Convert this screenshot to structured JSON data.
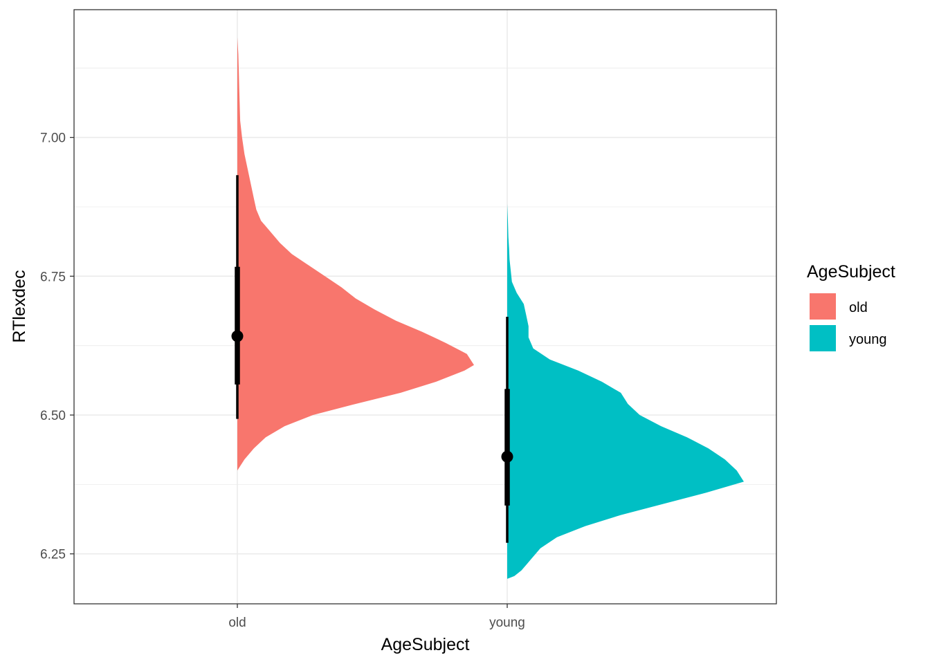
{
  "chart_data": {
    "type": "half-violin-pointinterval",
    "xlabel": "AgeSubject",
    "ylabel": "RTlexdec",
    "categories": [
      "old",
      "young"
    ],
    "ylim": [
      6.16,
      7.23
    ],
    "yticks": [
      "6.25",
      "6.50",
      "6.75",
      "7.00"
    ],
    "grid": true,
    "legend": {
      "title": "AgeSubject",
      "placement": "right",
      "entries": [
        "old",
        "young"
      ]
    },
    "colors": {
      "old": "#F8766D",
      "young": "#00BFC4"
    },
    "series": [
      {
        "name": "old",
        "density": [
          [
            6.4,
            0.0
          ],
          [
            6.42,
            0.03
          ],
          [
            6.44,
            0.07
          ],
          [
            6.46,
            0.12
          ],
          [
            6.48,
            0.2
          ],
          [
            6.5,
            0.32
          ],
          [
            6.52,
            0.5
          ],
          [
            6.54,
            0.69
          ],
          [
            6.56,
            0.84
          ],
          [
            6.58,
            0.96
          ],
          [
            6.59,
            1.0
          ],
          [
            6.61,
            0.97
          ],
          [
            6.63,
            0.88
          ],
          [
            6.65,
            0.78
          ],
          [
            6.67,
            0.67
          ],
          [
            6.69,
            0.58
          ],
          [
            6.71,
            0.5
          ],
          [
            6.73,
            0.44
          ],
          [
            6.75,
            0.37
          ],
          [
            6.77,
            0.3
          ],
          [
            6.79,
            0.23
          ],
          [
            6.81,
            0.18
          ],
          [
            6.83,
            0.14
          ],
          [
            6.85,
            0.1
          ],
          [
            6.87,
            0.08
          ],
          [
            6.89,
            0.07
          ],
          [
            6.91,
            0.06
          ],
          [
            6.93,
            0.05
          ],
          [
            6.95,
            0.04
          ],
          [
            6.97,
            0.03
          ],
          [
            7.0,
            0.02
          ],
          [
            7.03,
            0.012
          ],
          [
            7.06,
            0.01
          ],
          [
            7.09,
            0.008
          ],
          [
            7.12,
            0.006
          ],
          [
            7.15,
            0.004
          ],
          [
            7.18,
            0.0
          ]
        ],
        "point": 6.642,
        "interval_66": [
          6.555,
          6.767
        ],
        "interval_95": [
          6.493,
          6.932
        ]
      },
      {
        "name": "young",
        "density": [
          [
            6.205,
            0.0
          ],
          [
            6.21,
            0.03
          ],
          [
            6.22,
            0.06
          ],
          [
            6.24,
            0.1
          ],
          [
            6.26,
            0.14
          ],
          [
            6.28,
            0.21
          ],
          [
            6.3,
            0.33
          ],
          [
            6.32,
            0.48
          ],
          [
            6.34,
            0.66
          ],
          [
            6.36,
            0.84
          ],
          [
            6.38,
            1.0
          ],
          [
            6.4,
            0.97
          ],
          [
            6.42,
            0.92
          ],
          [
            6.44,
            0.85
          ],
          [
            6.46,
            0.76
          ],
          [
            6.48,
            0.65
          ],
          [
            6.5,
            0.56
          ],
          [
            6.52,
            0.51
          ],
          [
            6.54,
            0.48
          ],
          [
            6.56,
            0.4
          ],
          [
            6.58,
            0.3
          ],
          [
            6.6,
            0.18
          ],
          [
            6.62,
            0.11
          ],
          [
            6.64,
            0.09
          ],
          [
            6.66,
            0.09
          ],
          [
            6.68,
            0.08
          ],
          [
            6.7,
            0.07
          ],
          [
            6.72,
            0.04
          ],
          [
            6.74,
            0.02
          ],
          [
            6.76,
            0.015
          ],
          [
            6.78,
            0.01
          ],
          [
            6.8,
            0.008
          ],
          [
            6.82,
            0.005
          ],
          [
            6.85,
            0.003
          ],
          [
            6.88,
            0.0
          ]
        ],
        "point": 6.425,
        "interval_66": [
          6.337,
          6.547
        ],
        "interval_95": [
          6.27,
          6.677
        ]
      }
    ]
  }
}
